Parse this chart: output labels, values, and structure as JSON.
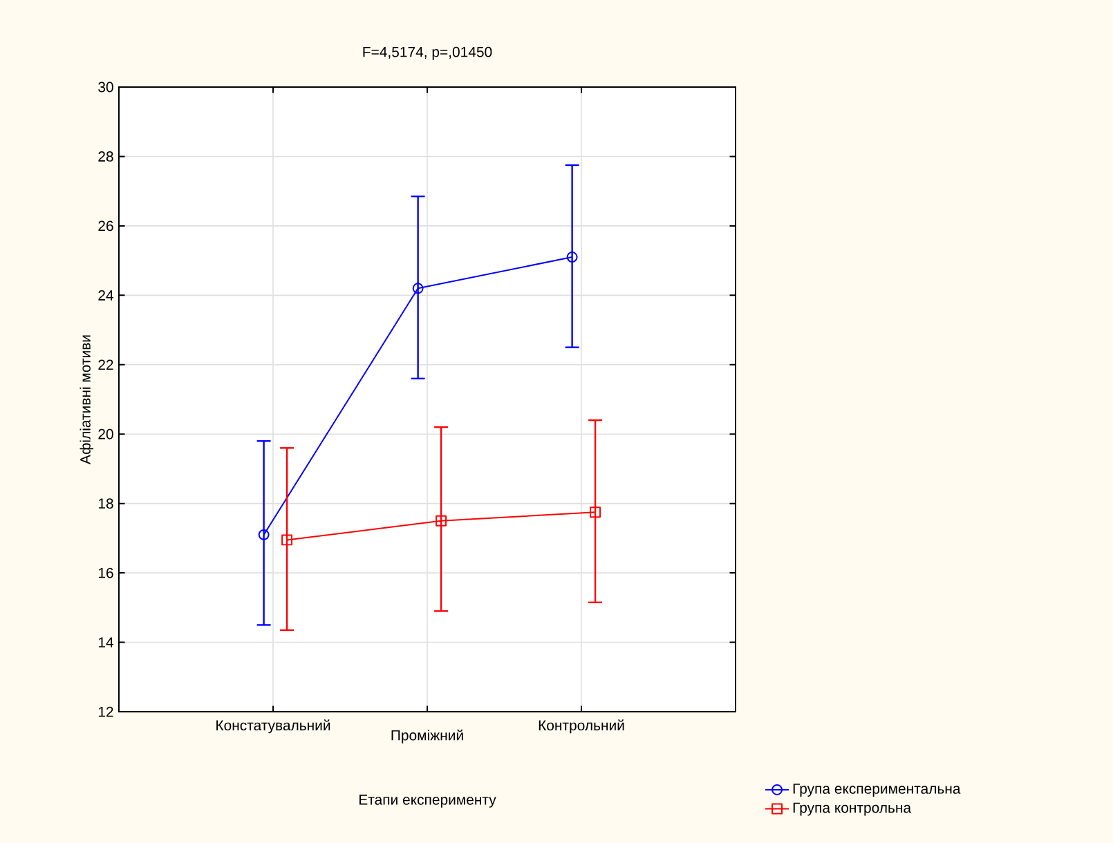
{
  "chart_data": {
    "type": "line",
    "title": "F=4,5174, p=,01450",
    "xlabel": "Етапи експерименту",
    "ylabel": "Афіліативні мотиви",
    "categories": [
      "Констатувальний",
      "Проміжний",
      "Контрольний"
    ],
    "series": [
      {
        "name": "Група експериментальна",
        "color": "#0000ff",
        "marker": "circle",
        "values": [
          17.1,
          24.2,
          25.1
        ],
        "errors": [
          [
            14.5,
            19.8
          ],
          [
            21.6,
            26.85
          ],
          [
            22.5,
            27.75
          ]
        ]
      },
      {
        "name": "Група контрольна",
        "color": "#ff0000",
        "marker": "square",
        "values": [
          16.95,
          17.5,
          17.75
        ],
        "errors": [
          [
            14.35,
            19.6
          ],
          [
            14.9,
            20.2
          ],
          [
            15.15,
            20.4
          ]
        ]
      }
    ],
    "ylim": [
      12,
      30
    ],
    "yticks": [
      12,
      14,
      16,
      18,
      20,
      22,
      24,
      26,
      28,
      30
    ],
    "grid": true,
    "legend": "bottom right",
    "line_style": "solid"
  }
}
